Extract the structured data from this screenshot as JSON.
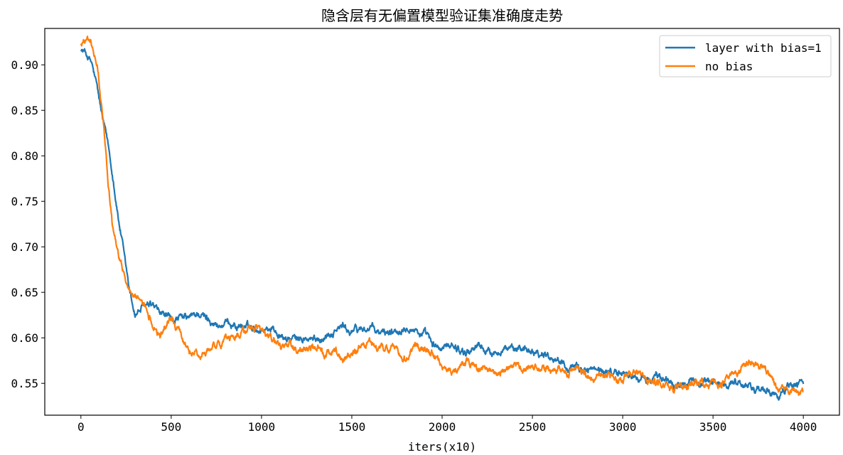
{
  "chart_data": {
    "type": "line",
    "title": "隐含层有无偏置模型验证集准确度走势",
    "xlabel": "iters(x10)",
    "ylabel": "",
    "xlim": [
      -200,
      4200
    ],
    "ylim": [
      0.515,
      0.94
    ],
    "x_ticks": [
      0,
      500,
      1000,
      1500,
      2000,
      2500,
      3000,
      3500,
      4000
    ],
    "y_ticks": [
      0.55,
      0.6,
      0.65,
      0.7,
      0.75,
      0.8,
      0.85,
      0.9
    ],
    "grid": false,
    "legend_position": "top-right",
    "series": [
      {
        "name": "layer with bias=1",
        "color": "#1f77b4",
        "x": [
          0,
          30,
          60,
          90,
          120,
          150,
          180,
          210,
          240,
          270,
          300,
          350,
          400,
          450,
          500,
          550,
          600,
          650,
          700,
          750,
          800,
          850,
          900,
          950,
          1000,
          1050,
          1100,
          1150,
          1200,
          1250,
          1300,
          1350,
          1400,
          1450,
          1500,
          1550,
          1600,
          1650,
          1700,
          1750,
          1800,
          1850,
          1900,
          1950,
          2000,
          2050,
          2100,
          2150,
          2200,
          2250,
          2300,
          2350,
          2400,
          2450,
          2500,
          2550,
          2600,
          2650,
          2700,
          2750,
          2800,
          2850,
          2900,
          2950,
          3000,
          3050,
          3100,
          3150,
          3200,
          3250,
          3300,
          3350,
          3400,
          3450,
          3500,
          3550,
          3600,
          3650,
          3700,
          3750,
          3800,
          3850,
          3900,
          3950,
          4000
        ],
        "y": [
          0.918,
          0.912,
          0.9,
          0.872,
          0.838,
          0.812,
          0.775,
          0.73,
          0.69,
          0.655,
          0.63,
          0.636,
          0.64,
          0.632,
          0.626,
          0.622,
          0.621,
          0.626,
          0.618,
          0.612,
          0.61,
          0.612,
          0.609,
          0.611,
          0.612,
          0.615,
          0.61,
          0.605,
          0.603,
          0.601,
          0.6,
          0.606,
          0.608,
          0.612,
          0.604,
          0.608,
          0.609,
          0.602,
          0.605,
          0.611,
          0.614,
          0.61,
          0.602,
          0.59,
          0.588,
          0.592,
          0.584,
          0.586,
          0.59,
          0.583,
          0.581,
          0.584,
          0.582,
          0.586,
          0.584,
          0.582,
          0.579,
          0.574,
          0.571,
          0.569,
          0.567,
          0.566,
          0.565,
          0.563,
          0.562,
          0.561,
          0.559,
          0.557,
          0.56,
          0.556,
          0.553,
          0.552,
          0.552,
          0.551,
          0.553,
          0.55,
          0.551,
          0.547,
          0.543,
          0.541,
          0.538,
          0.535,
          0.541,
          0.548,
          0.55
        ]
      },
      {
        "name": "no bias",
        "color": "#ff7f0e",
        "x": [
          0,
          30,
          60,
          90,
          120,
          150,
          180,
          210,
          240,
          270,
          300,
          350,
          400,
          450,
          500,
          550,
          600,
          650,
          700,
          750,
          800,
          850,
          900,
          950,
          1000,
          1050,
          1100,
          1150,
          1200,
          1250,
          1300,
          1350,
          1400,
          1450,
          1500,
          1550,
          1600,
          1650,
          1700,
          1750,
          1800,
          1850,
          1900,
          1950,
          2000,
          2050,
          2100,
          2150,
          2200,
          2250,
          2300,
          2350,
          2400,
          2450,
          2500,
          2550,
          2600,
          2650,
          2700,
          2750,
          2800,
          2850,
          2900,
          2950,
          3000,
          3050,
          3100,
          3150,
          3200,
          3250,
          3300,
          3350,
          3400,
          3450,
          3500,
          3550,
          3600,
          3650,
          3700,
          3750,
          3800,
          3850,
          3900,
          3950,
          4000
        ],
        "y": [
          0.922,
          0.927,
          0.917,
          0.893,
          0.84,
          0.775,
          0.715,
          0.692,
          0.668,
          0.655,
          0.648,
          0.628,
          0.612,
          0.604,
          0.625,
          0.606,
          0.59,
          0.579,
          0.582,
          0.592,
          0.596,
          0.603,
          0.607,
          0.609,
          0.606,
          0.596,
          0.588,
          0.592,
          0.585,
          0.582,
          0.584,
          0.577,
          0.584,
          0.57,
          0.579,
          0.583,
          0.587,
          0.582,
          0.585,
          0.585,
          0.577,
          0.596,
          0.589,
          0.584,
          0.569,
          0.563,
          0.566,
          0.572,
          0.563,
          0.566,
          0.561,
          0.565,
          0.567,
          0.561,
          0.567,
          0.563,
          0.56,
          0.565,
          0.563,
          0.568,
          0.556,
          0.557,
          0.559,
          0.555,
          0.551,
          0.553,
          0.555,
          0.552,
          0.55,
          0.548,
          0.544,
          0.546,
          0.552,
          0.548,
          0.553,
          0.552,
          0.555,
          0.563,
          0.575,
          0.571,
          0.565,
          0.55,
          0.545,
          0.541,
          0.538
        ]
      }
    ]
  }
}
